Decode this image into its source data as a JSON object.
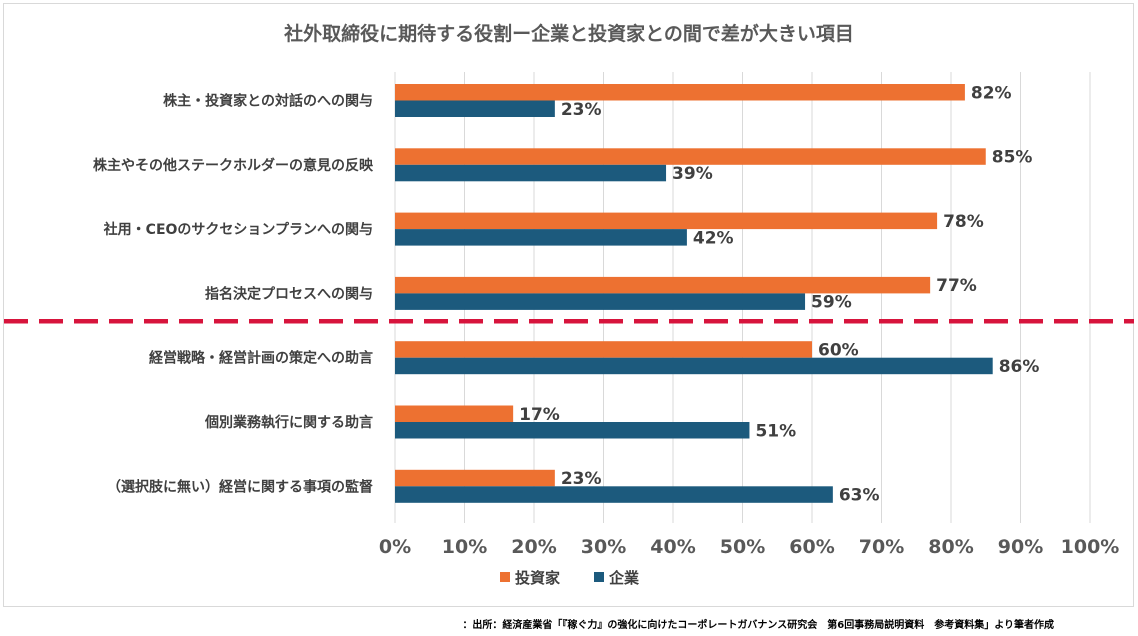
{
  "chart_data": {
    "type": "bar",
    "orientation": "horizontal",
    "title": "社外取締役に期待する役割ー企業と投資家との間で差が大きい項目",
    "categories": [
      "株主・投資家との対話のへの関与",
      "株主やその他ステークホルダーの意見の反映",
      "社用・CEOのサクセションプランへの関与",
      "指名決定プロセスへの関与",
      "経営戦略・経営計画の策定への助言",
      "個別業務執行に関する助言",
      "（選択肢に無い）経営に関する事項の監督"
    ],
    "series": [
      {
        "name": "投資家",
        "color": "#ed7131",
        "values": [
          82,
          85,
          78,
          77,
          60,
          17,
          23
        ]
      },
      {
        "name": "企業",
        "color": "#1c5a7d",
        "values": [
          23,
          39,
          42,
          59,
          86,
          51,
          63
        ]
      }
    ],
    "xlim": [
      0,
      100
    ],
    "x_ticks": [
      "0%",
      "10%",
      "20%",
      "30%",
      "40%",
      "50%",
      "60%",
      "70%",
      "80%",
      "90%",
      "100%"
    ],
    "value_suffix": "%",
    "grid": "vertical",
    "legend_position": "bottom",
    "divider": {
      "after_category_index": 3,
      "color": "#d7143c",
      "style": "dashed"
    }
  },
  "source_note": "：出所：経済産業省「『稼ぐ力』の強化に向けたコーポレートガバナンス研究会　第6回事務局説明資料　参考資料集」より筆者作成"
}
